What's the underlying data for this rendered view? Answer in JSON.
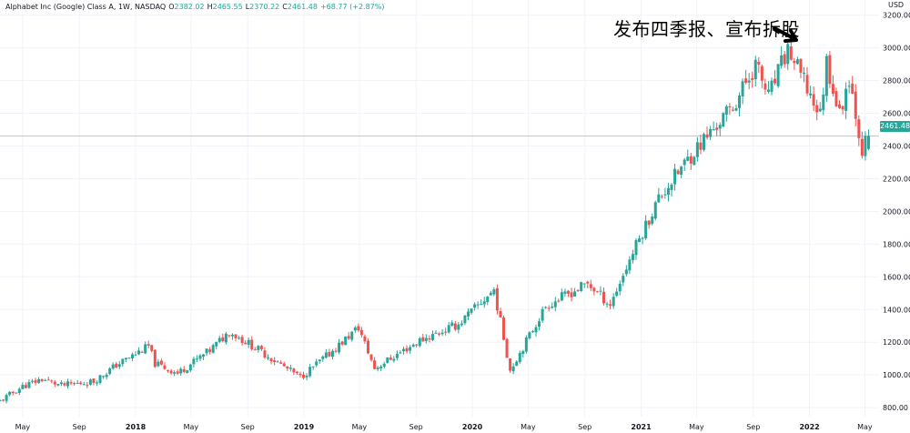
{
  "header": {
    "symbol": "Alphabet Inc (Google) Class A, 1W, NASDAQ",
    "open_label": "O",
    "open": "2382.02",
    "high_label": "H",
    "high": "2465.55",
    "low_label": "L",
    "low": "2370.22",
    "close_label": "C",
    "close": "2461.48",
    "change": "+68.77 (+2.87%)"
  },
  "annotation": {
    "text": "发布四季报、宣布拆股",
    "arrow_icon": "arrow-down-right-icon"
  },
  "axis": {
    "currency": "USD",
    "last_price_tag": "2461.48"
  },
  "colors": {
    "up": "#26a69a",
    "down": "#ef5350",
    "grid": "#f0f3fa",
    "last_price_line": "#9adad3",
    "text": "#131722",
    "background": "#ffffff"
  },
  "chart_data": {
    "type": "candlestick",
    "title": "Alphabet Inc (Google) Class A, 1W, NASDAQ",
    "timeframe": "1W",
    "y_ticks": [
      800,
      1000,
      1200,
      1400,
      1600,
      1800,
      2000,
      2200,
      2400,
      2600,
      2800,
      3000,
      3200
    ],
    "y_tick_labels": [
      "800.00",
      "1000.00",
      "1200.00",
      "1400.00",
      "1600.00",
      "1800.00",
      "2000.00",
      "2200.00",
      "2400.00",
      "2600.00",
      "2800.00",
      "3000.00",
      "3200.00"
    ],
    "ylim": [
      745,
      3215
    ],
    "x_ticks": [
      {
        "label": "May",
        "date": "2017-05-01"
      },
      {
        "label": "Sep",
        "date": "2017-09-01"
      },
      {
        "label": "2018",
        "date": "2018-01-01"
      },
      {
        "label": "May",
        "date": "2018-05-01"
      },
      {
        "label": "Sep",
        "date": "2018-09-01"
      },
      {
        "label": "2019",
        "date": "2019-01-01"
      },
      {
        "label": "May",
        "date": "2019-05-01"
      },
      {
        "label": "Sep",
        "date": "2019-09-01"
      },
      {
        "label": "2020",
        "date": "2020-01-01"
      },
      {
        "label": "May",
        "date": "2020-05-01"
      },
      {
        "label": "Sep",
        "date": "2020-09-01"
      },
      {
        "label": "2021",
        "date": "2021-01-01"
      },
      {
        "label": "May",
        "date": "2021-05-01"
      },
      {
        "label": "Sep",
        "date": "2021-09-01"
      },
      {
        "label": "2022",
        "date": "2022-01-01"
      },
      {
        "label": "May",
        "date": "2022-05-01"
      }
    ],
    "xlim": [
      "2017-03-13",
      "2022-05-16"
    ],
    "grid": true,
    "last_close": 2461.48,
    "price_anchors": [
      {
        "date": "2017-03-13",
        "price": 840
      },
      {
        "date": "2017-05-01",
        "price": 930
      },
      {
        "date": "2017-06-12",
        "price": 975
      },
      {
        "date": "2017-07-24",
        "price": 935
      },
      {
        "date": "2017-10-02",
        "price": 960
      },
      {
        "date": "2017-11-20",
        "price": 1060
      },
      {
        "date": "2018-01-29",
        "price": 1175
      },
      {
        "date": "2018-02-12",
        "price": 1070
      },
      {
        "date": "2018-04-02",
        "price": 1010
      },
      {
        "date": "2018-06-11",
        "price": 1150
      },
      {
        "date": "2018-07-23",
        "price": 1265
      },
      {
        "date": "2018-09-10",
        "price": 1180
      },
      {
        "date": "2018-12-24",
        "price": 985
      },
      {
        "date": "2019-02-25",
        "price": 1130
      },
      {
        "date": "2019-04-29",
        "price": 1290
      },
      {
        "date": "2019-06-03",
        "price": 1040
      },
      {
        "date": "2019-09-09",
        "price": 1210
      },
      {
        "date": "2019-12-02",
        "price": 1310
      },
      {
        "date": "2020-02-17",
        "price": 1520
      },
      {
        "date": "2020-03-23",
        "price": 1030
      },
      {
        "date": "2020-06-08",
        "price": 1420
      },
      {
        "date": "2020-09-07",
        "price": 1560
      },
      {
        "date": "2020-10-26",
        "price": 1430
      },
      {
        "date": "2020-12-14",
        "price": 1750
      },
      {
        "date": "2021-02-08",
        "price": 2080
      },
      {
        "date": "2021-04-26",
        "price": 2370
      },
      {
        "date": "2021-07-19",
        "price": 2640
      },
      {
        "date": "2021-09-06",
        "price": 2900
      },
      {
        "date": "2021-10-04",
        "price": 2700
      },
      {
        "date": "2021-11-15",
        "price": 2990
      },
      {
        "date": "2022-01-24",
        "price": 2590
      },
      {
        "date": "2022-02-07",
        "price": 2920
      },
      {
        "date": "2022-03-07",
        "price": 2590
      },
      {
        "date": "2022-03-28",
        "price": 2830
      },
      {
        "date": "2022-04-25",
        "price": 2380
      },
      {
        "date": "2022-05-09",
        "price": 2461.48
      }
    ]
  }
}
